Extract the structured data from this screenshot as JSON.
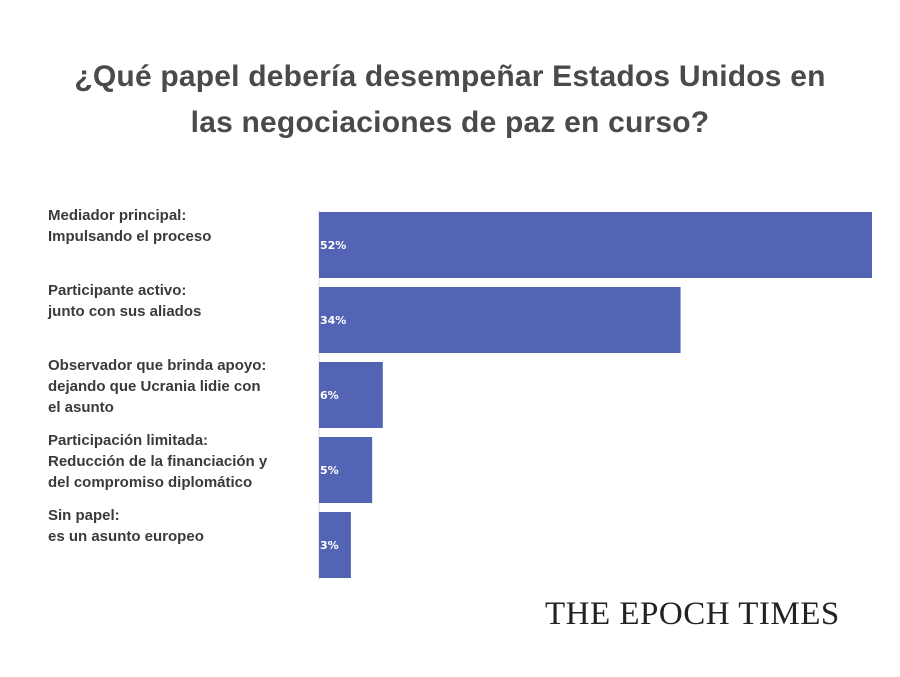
{
  "title": {
    "line1": "¿Qué papel debería desempeñar Estados Unidos en",
    "line2": "las negociaciones de paz en curso?"
  },
  "chart_data": {
    "type": "bar",
    "orientation": "horizontal",
    "categories": [
      [
        "Mediador principal:",
        "Impulsando el proceso"
      ],
      [
        "Participante activo:",
        "junto con sus aliados"
      ],
      [
        "Observador que brinda apoyo:",
        "dejando que Ucrania lidie con",
        "el asunto"
      ],
      [
        "Participación limitada:",
        "Reducción de la financiación y",
        "del compromiso diplomático"
      ],
      [
        "Sin papel:",
        "es un asunto europeo"
      ]
    ],
    "values": [
      52,
      34,
      6,
      5,
      3
    ],
    "value_labels": [
      "52%",
      "34%",
      "6%",
      "5%",
      "3%"
    ],
    "xlim": [
      0,
      52
    ],
    "bar_color": "#5264b3",
    "grid": false,
    "legend": "none"
  },
  "brand": {
    "logo_text": "THE EPOCH TIMES"
  }
}
